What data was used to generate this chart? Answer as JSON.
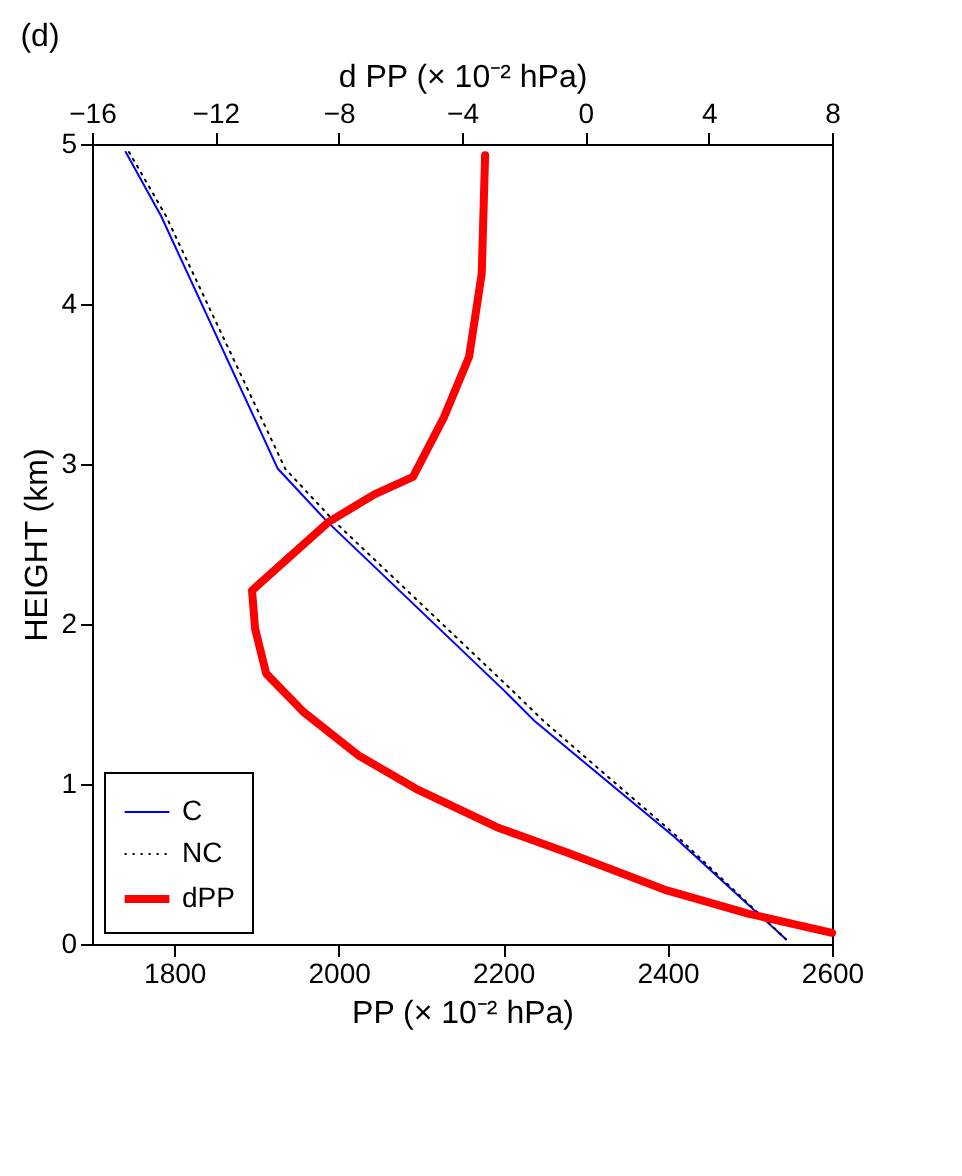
{
  "chart_data": {
    "type": "line",
    "title": "(d)",
    "xlabel": "PP (× 10⁻² hPa)",
    "x2label": "d PP (× 10⁻² hPa)",
    "ylabel": "HEIGHT (km)",
    "xlim": [
      1700,
      2600
    ],
    "xticks": [
      1800,
      2000,
      2200,
      2400,
      2600
    ],
    "x2lim": [
      -16,
      8
    ],
    "x2ticks": [
      -16,
      -12,
      -8,
      -4,
      0,
      4,
      8
    ],
    "ylim": [
      0,
      5
    ],
    "yticks": [
      0,
      1,
      2,
      3,
      4,
      5
    ],
    "grid": false,
    "legend": "bottom left",
    "marker": "none",
    "series": [
      {
        "name": "C",
        "color": "#0000ff",
        "line_style": "solid",
        "x": [
          1741,
          1784,
          1926,
          1986,
          2200,
          2239,
          2408,
          2544
        ],
        "values": [
          4.95,
          4.55,
          2.97,
          2.64,
          1.59,
          1.39,
          0.67,
          0.03
        ]
      },
      {
        "name": "NC",
        "color": "#000000",
        "line_style": "dotted",
        "x": [
          1745,
          1790,
          1935,
          1995,
          2210,
          2250,
          2412,
          2544
        ],
        "values": [
          4.95,
          4.55,
          2.97,
          2.64,
          1.59,
          1.39,
          0.67,
          0.03
        ]
      },
      {
        "name": "dPP",
        "color": "#ff0000",
        "line_style": "solid",
        "axis": "x2",
        "x": [
          -3.25,
          -3.36,
          -3.77,
          -4.59,
          -5.59,
          -6.84,
          -8.31,
          -10.81,
          -10.71,
          -10.35,
          -9.14,
          -7.37,
          -5.49,
          -2.87,
          -0.57,
          2.56,
          5.28,
          8.0
        ],
        "values": [
          4.93,
          4.19,
          3.67,
          3.29,
          2.92,
          2.81,
          2.64,
          2.21,
          1.97,
          1.69,
          1.45,
          1.18,
          0.97,
          0.73,
          0.57,
          0.34,
          0.19,
          0.07
        ]
      }
    ]
  }
}
